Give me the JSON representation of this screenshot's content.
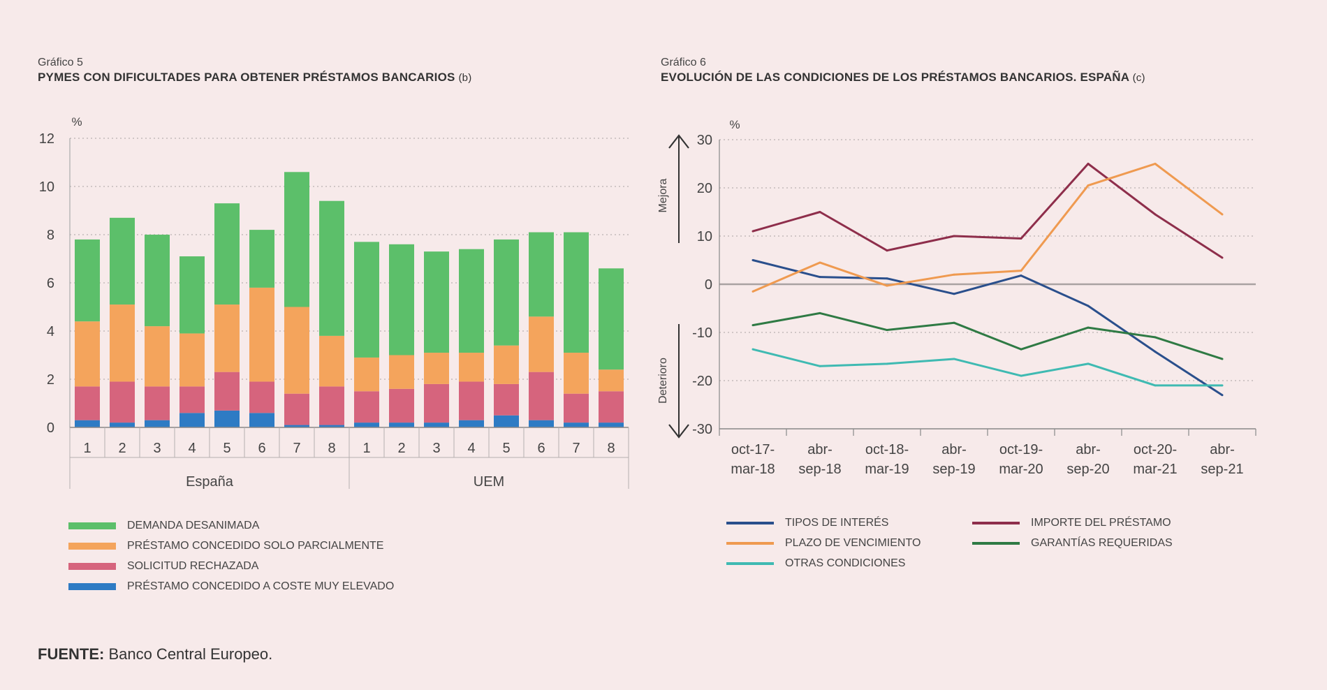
{
  "chart5": {
    "label": "Gráfico 5",
    "title": "PYMES CON DIFICULTADES PARA OBTENER PRÉSTAMOS BANCARIOS",
    "note": "(b)",
    "chart_data": {
      "type": "bar",
      "stacked": true,
      "ylabel": "%",
      "ylim": [
        0,
        12
      ],
      "yticks": [
        0,
        2,
        4,
        6,
        8,
        10,
        12
      ],
      "grid": true,
      "categories": [
        "1",
        "2",
        "3",
        "4",
        "5",
        "6",
        "7",
        "8",
        "1",
        "2",
        "3",
        "4",
        "5",
        "6",
        "7",
        "8"
      ],
      "groups": [
        {
          "name": "España",
          "count": 8
        },
        {
          "name": "UEM",
          "count": 8
        }
      ],
      "series": [
        {
          "name": "PRÉSTAMO CONCEDIDO A COSTE MUY ELEVADO",
          "color": "#2e7bc4",
          "values": [
            0.3,
            0.2,
            0.3,
            0.6,
            0.7,
            0.6,
            0.1,
            0.1,
            0.2,
            0.2,
            0.2,
            0.3,
            0.5,
            0.3,
            0.2,
            0.2
          ]
        },
        {
          "name": "SOLICITUD RECHAZADA",
          "color": "#d6647d",
          "values": [
            1.4,
            1.7,
            1.4,
            1.1,
            1.6,
            1.3,
            1.3,
            1.6,
            1.3,
            1.4,
            1.6,
            1.6,
            1.3,
            2.0,
            1.2,
            1.3
          ]
        },
        {
          "name": "PRÉSTAMO CONCEDIDO SOLO PARCIALMENTE",
          "color": "#f4a45c",
          "values": [
            2.7,
            3.2,
            2.5,
            2.2,
            2.8,
            3.9,
            3.6,
            2.1,
            1.4,
            1.4,
            1.3,
            1.2,
            1.6,
            2.3,
            1.7,
            0.9
          ]
        },
        {
          "name": "DEMANDA DESANIMADA",
          "color": "#5cbf6a",
          "values": [
            3.4,
            3.6,
            3.8,
            3.2,
            4.2,
            2.4,
            5.6,
            5.6,
            4.8,
            4.6,
            4.2,
            4.3,
            4.4,
            3.5,
            5.0,
            4.2
          ]
        }
      ]
    }
  },
  "chart6": {
    "label": "Gráfico 6",
    "title": "EVOLUCIÓN DE LAS CONDICIONES DE LOS PRÉSTAMOS BANCARIOS. ESPAÑA",
    "note": "(c)",
    "chart_data": {
      "type": "line",
      "ylabel": "%",
      "ylim": [
        -30,
        30
      ],
      "yticks": [
        -30,
        -20,
        -10,
        0,
        10,
        20,
        30
      ],
      "grid": true,
      "arrow_up_label": "Mejora",
      "arrow_down_label": "Deterioro",
      "categories": [
        [
          "oct-17-",
          "mar-18"
        ],
        [
          "abr-",
          "sep-18"
        ],
        [
          "oct-18-",
          "mar-19"
        ],
        [
          "abr-",
          "sep-19"
        ],
        [
          "oct-19-",
          "mar-20"
        ],
        [
          "abr-",
          "sep-20"
        ],
        [
          "oct-20-",
          "mar-21"
        ],
        [
          "abr-",
          "sep-21"
        ]
      ],
      "series": [
        {
          "name": "TIPOS DE INTERÉS",
          "color": "#2a4f8c",
          "values": [
            5,
            1.5,
            1.2,
            -2,
            1.8,
            -4.5,
            -14,
            -23
          ]
        },
        {
          "name": "IMPORTE DEL PRÉSTAMO",
          "color": "#8e2e4b",
          "values": [
            11,
            15,
            7,
            10,
            9.5,
            25,
            14.5,
            5.5
          ]
        },
        {
          "name": "PLAZO DE VENCIMIENTO",
          "color": "#ef9a50",
          "values": [
            -1.5,
            4.5,
            -0.3,
            2,
            2.8,
            20.5,
            25,
            14.5
          ]
        },
        {
          "name": "GARANTÍAS REQUERIDAS",
          "color": "#2f7a44",
          "values": [
            -8.5,
            -6,
            -9.5,
            -8,
            -13.5,
            -9,
            -11,
            -15.5
          ]
        },
        {
          "name": "OTRAS CONDICIONES",
          "color": "#3fbab2",
          "values": [
            -13.5,
            -17,
            -16.5,
            -15.5,
            -19,
            -16.5,
            -21,
            -21
          ]
        }
      ]
    }
  },
  "source": {
    "label": "FUENTE:",
    "text": " Banco Central Europeo."
  }
}
